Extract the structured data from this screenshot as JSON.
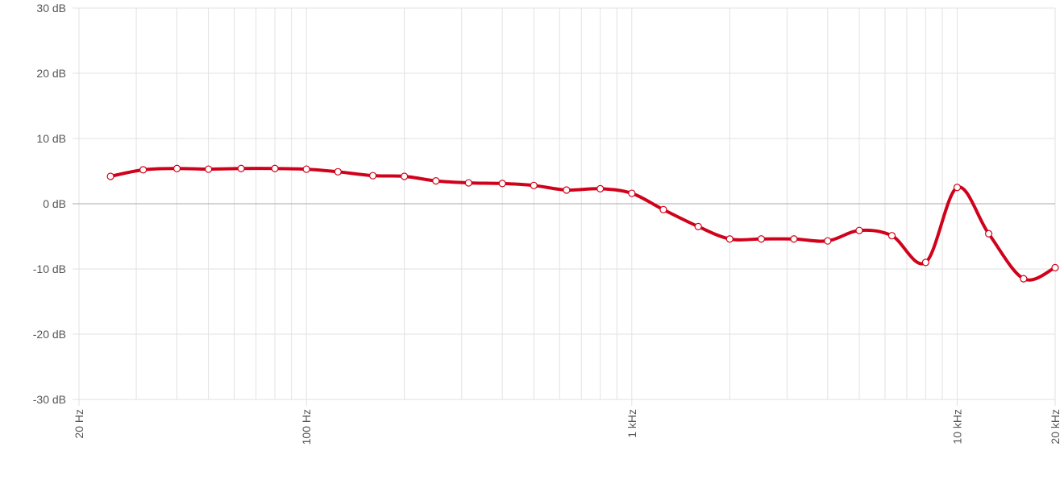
{
  "chart_data": {
    "type": "line",
    "xscale": "log",
    "x": [
      25,
      31.5,
      40,
      50,
      63,
      80,
      100,
      125,
      160,
      200,
      250,
      315,
      400,
      500,
      630,
      800,
      1000,
      1250,
      1600,
      2000,
      2500,
      3150,
      4000,
      5000,
      6300,
      8000,
      10000,
      12500,
      16000,
      20000
    ],
    "series": [
      {
        "color": "#d0021b",
        "values": [
          4.2,
          5.2,
          5.4,
          5.3,
          5.4,
          5.4,
          5.3,
          4.9,
          4.3,
          4.2,
          3.5,
          3.2,
          3.1,
          2.8,
          2.1,
          2.3,
          1.6,
          -0.9,
          -3.5,
          -5.4,
          -5.4,
          -5.4,
          -5.7,
          -4.1,
          -4.9,
          -9.0,
          2.5,
          -4.6,
          -11.5,
          -9.8
        ]
      }
    ],
    "xlim": [
      20,
      20000
    ],
    "xticks": [
      {
        "value": 20,
        "label": "20 Hz"
      },
      {
        "value": 100,
        "label": "100 Hz"
      },
      {
        "value": 1000,
        "label": "1 kHz"
      },
      {
        "value": 10000,
        "label": "10 kHz"
      },
      {
        "value": 20000,
        "label": "20 kHz"
      }
    ],
    "xgrid": [
      30,
      40,
      50,
      60,
      70,
      80,
      90,
      200,
      300,
      400,
      500,
      600,
      700,
      800,
      900,
      2000,
      3000,
      4000,
      5000,
      6000,
      7000,
      8000,
      9000
    ],
    "ylim": [
      -30,
      30
    ],
    "yticks": [
      {
        "value": 30,
        "label": "30 dB"
      },
      {
        "value": 20,
        "label": "20 dB"
      },
      {
        "value": 10,
        "label": "10 dB"
      },
      {
        "value": 0,
        "label": "0 dB"
      },
      {
        "value": -10,
        "label": "-10 dB"
      },
      {
        "value": -20,
        "label": "-20 dB"
      },
      {
        "value": -30,
        "label": "-30 dB"
      }
    ],
    "grid": true
  }
}
